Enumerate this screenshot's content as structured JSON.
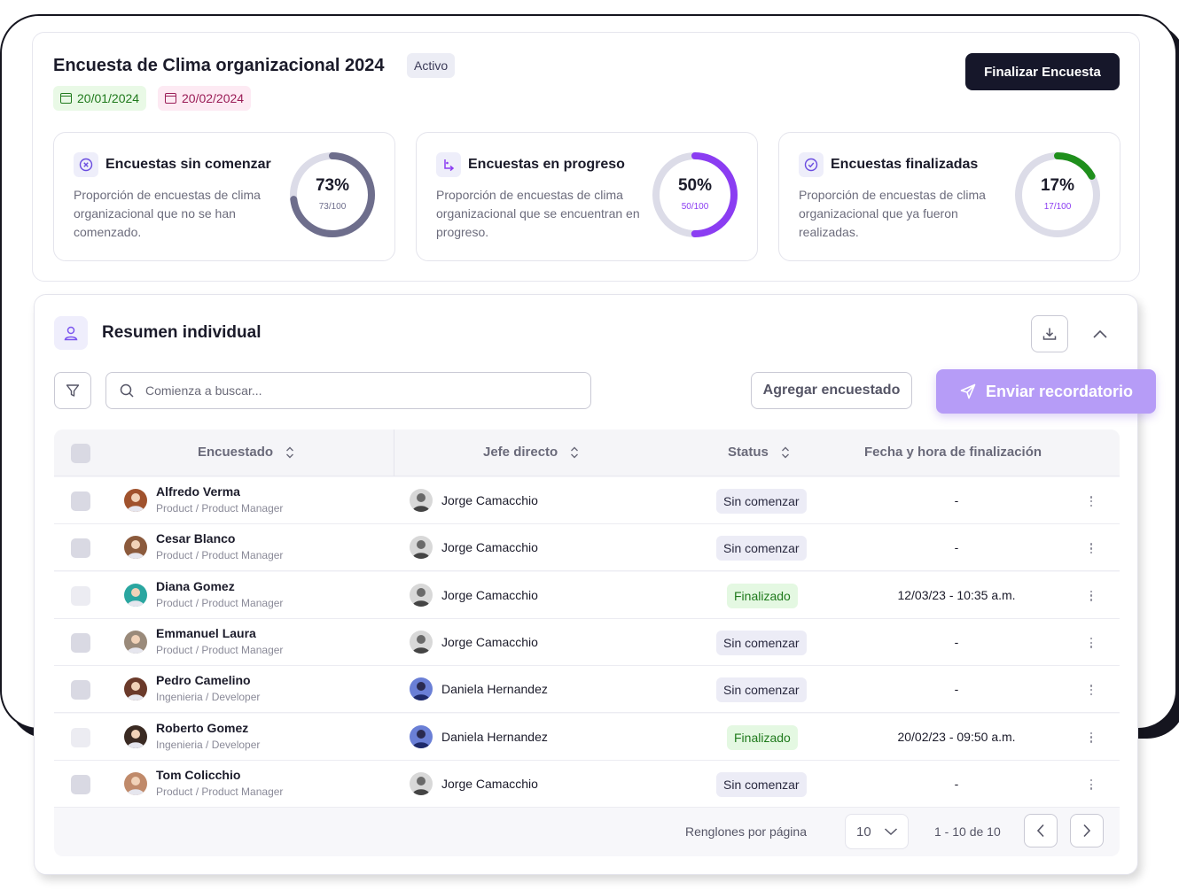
{
  "survey": {
    "title": "Encuesta de Clima organizacional 2024",
    "status": "Activo",
    "start_date": "20/01/2024",
    "end_date": "20/02/2024",
    "finish_button": "Finalizar Encuesta"
  },
  "stats": [
    {
      "title": "Encuestas sin comenzar",
      "description": "Proporción de encuestas de clima organizacional que no se han comenzado.",
      "percent_label": "73%",
      "fraction_label": "73/100",
      "value": 73,
      "color": "#6e6e8c",
      "frac_color": "#6e6e8c",
      "icon": "x-circle-icon"
    },
    {
      "title": "Encuestas en progreso",
      "description": "Proporción de encuestas de clima organizacional que se encuentran en progreso.",
      "percent_label": "50%",
      "fraction_label": "50/100",
      "value": 50,
      "color": "#8b3df2",
      "frac_color": "#8b3df2",
      "icon": "progress-arrow-icon"
    },
    {
      "title": "Encuestas finalizadas",
      "description": "Proporción de encuestas de clima organizacional que ya fueron realizadas.",
      "percent_label": "17%",
      "fraction_label": "17/100",
      "value": 17,
      "color": "#1f8f1c",
      "frac_color": "#8b3df2",
      "icon": "check-circle-icon"
    }
  ],
  "summary": {
    "title": "Resumen individual",
    "search_placeholder": "Comienza a buscar...",
    "add_button": "Agregar encuestado",
    "reminder_button": "Enviar recordatorio"
  },
  "table": {
    "columns": [
      "Encuestado",
      "Jefe directo",
      "Status",
      "Fecha y hora de finalización"
    ],
    "rows": [
      {
        "name": "Alfredo Verma",
        "role": "Product / Product Manager",
        "boss": "Jorge Camacchio",
        "status": "Sin comenzar",
        "date": "-"
      },
      {
        "name": "Cesar Blanco",
        "role": "Product / Product Manager",
        "boss": "Jorge Camacchio",
        "status": "Sin comenzar",
        "date": "-"
      },
      {
        "name": "Diana Gomez",
        "role": "Product / Product Manager",
        "boss": "Jorge Camacchio",
        "status": "Finalizado",
        "date": "12/03/23 - 10:35 a.m."
      },
      {
        "name": "Emmanuel Laura",
        "role": "Product / Product Manager",
        "boss": "Jorge Camacchio",
        "status": "Sin comenzar",
        "date": "-"
      },
      {
        "name": "Pedro Camelino",
        "role": "Ingenieria / Developer",
        "boss": "Daniela Hernandez",
        "status": "Sin comenzar",
        "date": "-"
      },
      {
        "name": "Roberto Gomez",
        "role": "Ingenieria / Developer",
        "boss": "Daniela Hernandez",
        "status": "Finalizado",
        "date": "20/02/23 - 09:50 a.m."
      },
      {
        "name": "Tom Colicchio",
        "role": "Product / Product Manager",
        "boss": "Jorge Camacchio",
        "status": "Sin comenzar",
        "date": "-"
      }
    ]
  },
  "pagination": {
    "rows_label": "Renglones por página",
    "rows_per_page": "10",
    "range": "1 - 10 de 10"
  }
}
